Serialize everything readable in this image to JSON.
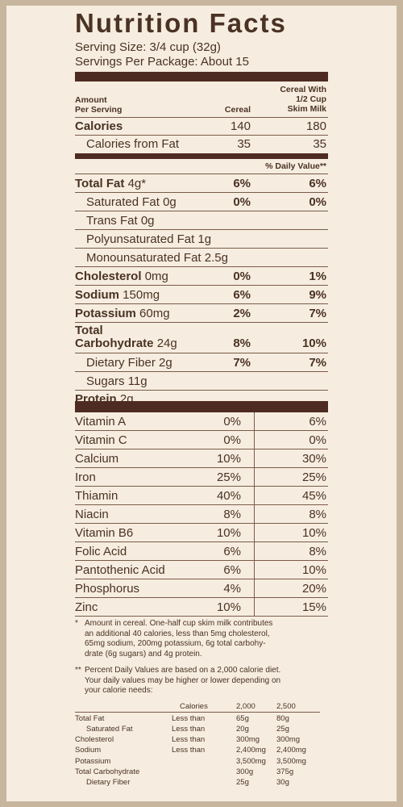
{
  "title": "Nutrition Facts",
  "serving_size": "Serving Size: 3/4 cup (32g)",
  "servings_per_package": "Servings Per Package: About 15",
  "header": {
    "amount_line1": "Amount",
    "amount_line2": "Per Serving",
    "col1": "Cereal",
    "col2_line1": "Cereal With",
    "col2_line2": "1/2 Cup",
    "col2_line3": "Skim Milk"
  },
  "calories": {
    "label": "Calories",
    "cereal": "140",
    "with_milk": "180"
  },
  "calories_from_fat": {
    "label": "Calories from Fat",
    "cereal": "35",
    "with_milk": "35"
  },
  "daily_value_header": "% Daily Value**",
  "nutrients": [
    {
      "name": "Total Fat",
      "amount": "4g*",
      "cereal": "6%",
      "with_milk": "6%"
    },
    {
      "name": "Saturated Fat",
      "amount": "0g",
      "cereal": "0%",
      "with_milk": "0%"
    },
    {
      "name": "Trans Fat",
      "amount": "0g",
      "cereal": "",
      "with_milk": ""
    },
    {
      "name": "Polyunsaturated Fat",
      "amount": "1g",
      "cereal": "",
      "with_milk": ""
    },
    {
      "name": "Monounsaturated Fat",
      "amount": "2.5g",
      "cereal": "",
      "with_milk": ""
    },
    {
      "name": "Cholesterol",
      "amount": "0mg",
      "cereal": "0%",
      "with_milk": "1%"
    },
    {
      "name": "Sodium",
      "amount": "150mg",
      "cereal": "6%",
      "with_milk": "9%"
    },
    {
      "name": "Potassium",
      "amount": "60mg",
      "cereal": "2%",
      "with_milk": "7%"
    },
    {
      "name_line1": "Total",
      "name": "Carbohydrate",
      "amount": "24g",
      "cereal": "8%",
      "with_milk": "10%"
    },
    {
      "name": "Dietary Fiber",
      "amount": "2g",
      "cereal": "7%",
      "with_milk": "7%"
    },
    {
      "name": "Sugars",
      "amount": "11g",
      "cereal": "",
      "with_milk": ""
    },
    {
      "name": "Protein",
      "amount": "2g",
      "cereal": "",
      "with_milk": ""
    }
  ],
  "vitamins": [
    {
      "name": "Vitamin A",
      "cereal": "0%",
      "with_milk": "6%"
    },
    {
      "name": "Vitamin C",
      "cereal": "0%",
      "with_milk": "0%"
    },
    {
      "name": "Calcium",
      "cereal": "10%",
      "with_milk": "30%"
    },
    {
      "name": "Iron",
      "cereal": "25%",
      "with_milk": "25%"
    },
    {
      "name": "Thiamin",
      "cereal": "40%",
      "with_milk": "45%"
    },
    {
      "name": "Niacin",
      "cereal": "8%",
      "with_milk": "8%"
    },
    {
      "name": "Vitamin B6",
      "cereal": "10%",
      "with_milk": "10%"
    },
    {
      "name": "Folic Acid",
      "cereal": "6%",
      "with_milk": "8%"
    },
    {
      "name": "Pantothenic Acid",
      "cereal": "6%",
      "with_milk": "10%"
    },
    {
      "name": "Phosphorus",
      "cereal": "4%",
      "with_milk": "20%"
    },
    {
      "name": "Zinc",
      "cereal": "10%",
      "with_milk": "15%"
    }
  ],
  "footnote1": {
    "mark": "*",
    "lines": [
      "Amount in cereal. One-half cup skim milk contributes",
      "an additional 40 calories, less than 5mg cholesterol,",
      "65mg sodium, 200mg potassium, 6g total carbohy-",
      "drate (6g sugars) and 4g protein."
    ]
  },
  "footnote2": {
    "mark": "**",
    "lines": [
      "Percent Daily Values are based on a 2,000 calorie diet.",
      "Your daily values may be higher or lower depending on",
      "your calorie needs:"
    ]
  },
  "dv_table": {
    "header": [
      "Calories",
      "2,000",
      "2,500"
    ],
    "rows": [
      {
        "name": "Total Fat",
        "qual": "Less than",
        "v1": "65g",
        "v2": "80g"
      },
      {
        "name": "Saturated Fat",
        "qual": "Less than",
        "v1": "20g",
        "v2": "25g"
      },
      {
        "name": "Cholesterol",
        "qual": "Less than",
        "v1": "300mg",
        "v2": "300mg"
      },
      {
        "name": "Sodium",
        "qual": "Less than",
        "v1": "2,400mg",
        "v2": "2,400mg"
      },
      {
        "name": "Potassium",
        "qual": "",
        "v1": "3,500mg",
        "v2": "3,500mg"
      },
      {
        "name": "Total Carbohydrate",
        "qual": "",
        "v1": "300g",
        "v2": "375g"
      },
      {
        "name": "Dietary Fiber",
        "qual": "",
        "v1": "25g",
        "v2": "30g"
      }
    ]
  },
  "colors": {
    "panel": "#f6ede0",
    "border": "#c7b59d",
    "text": "#4a3224",
    "bar": "#4e2b22"
  }
}
